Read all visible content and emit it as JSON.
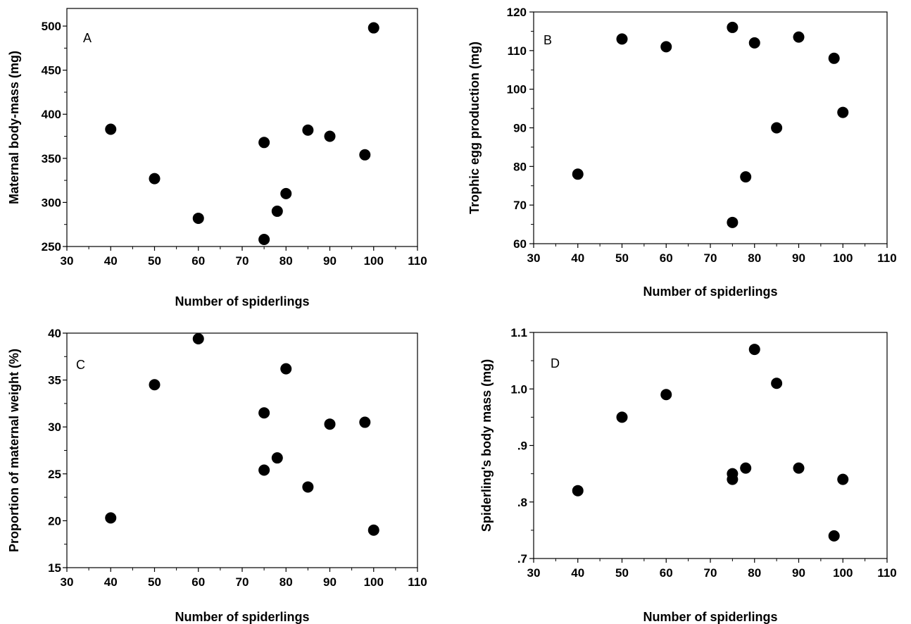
{
  "chart_data": [
    {
      "type": "scatter",
      "panel_label": "A",
      "xlabel": "Number of spiderlings",
      "ylabel": "Maternal body-mass (mg)",
      "xlim": [
        30,
        110
      ],
      "ylim": [
        250,
        520
      ],
      "xticks": [
        30,
        40,
        50,
        60,
        70,
        80,
        90,
        100,
        110
      ],
      "yticks": [
        250,
        300,
        350,
        400,
        450,
        500
      ],
      "ytick_labels": [
        "250",
        "300",
        "350",
        "400",
        "450",
        "500"
      ],
      "grid": false,
      "points": [
        {
          "x": 40,
          "y": 383
        },
        {
          "x": 50,
          "y": 327
        },
        {
          "x": 60,
          "y": 282
        },
        {
          "x": 75,
          "y": 368
        },
        {
          "x": 75,
          "y": 258
        },
        {
          "x": 78,
          "y": 290
        },
        {
          "x": 80,
          "y": 310
        },
        {
          "x": 85,
          "y": 382
        },
        {
          "x": 90,
          "y": 375
        },
        {
          "x": 98,
          "y": 354
        },
        {
          "x": 100,
          "y": 498
        }
      ]
    },
    {
      "type": "scatter",
      "panel_label": "B",
      "xlabel": "Number of spiderlings",
      "ylabel": "Trophic egg production (mg)",
      "xlim": [
        30,
        110
      ],
      "ylim": [
        60,
        120
      ],
      "xticks": [
        30,
        40,
        50,
        60,
        70,
        80,
        90,
        100,
        110
      ],
      "yticks": [
        60,
        70,
        80,
        90,
        100,
        110,
        120
      ],
      "ytick_labels": [
        "60",
        "70",
        "80",
        "90",
        "100",
        "110",
        "120"
      ],
      "grid": false,
      "points": [
        {
          "x": 40,
          "y": 78
        },
        {
          "x": 50,
          "y": 113
        },
        {
          "x": 60,
          "y": 111
        },
        {
          "x": 75,
          "y": 116
        },
        {
          "x": 75,
          "y": 65.5
        },
        {
          "x": 78,
          "y": 77.3
        },
        {
          "x": 80,
          "y": 112
        },
        {
          "x": 85,
          "y": 90
        },
        {
          "x": 90,
          "y": 113.5
        },
        {
          "x": 98,
          "y": 108
        },
        {
          "x": 100,
          "y": 94
        }
      ]
    },
    {
      "type": "scatter",
      "panel_label": "C",
      "xlabel": "Number of spiderlings",
      "ylabel": "Proportion of maternal weight (%)",
      "xlim": [
        30,
        110
      ],
      "ylim": [
        15,
        40
      ],
      "xticks": [
        30,
        40,
        50,
        60,
        70,
        80,
        90,
        100,
        110
      ],
      "yticks": [
        15,
        20,
        25,
        30,
        35,
        40
      ],
      "ytick_labels": [
        "15",
        "20",
        "25",
        "30",
        "35",
        "40"
      ],
      "grid": false,
      "points": [
        {
          "x": 40,
          "y": 20.3
        },
        {
          "x": 50,
          "y": 34.5
        },
        {
          "x": 60,
          "y": 39.4
        },
        {
          "x": 75,
          "y": 31.5
        },
        {
          "x": 75,
          "y": 25.4
        },
        {
          "x": 78,
          "y": 26.7
        },
        {
          "x": 80,
          "y": 36.2
        },
        {
          "x": 85,
          "y": 23.6
        },
        {
          "x": 90,
          "y": 30.3
        },
        {
          "x": 98,
          "y": 30.5
        },
        {
          "x": 100,
          "y": 19
        }
      ]
    },
    {
      "type": "scatter",
      "panel_label": "D",
      "xlabel": "Number of spiderlings",
      "ylabel": "Spiderling's body mass (mg)",
      "xlim": [
        30,
        110
      ],
      "ylim": [
        0.7,
        1.1
      ],
      "xticks": [
        30,
        40,
        50,
        60,
        70,
        80,
        90,
        100,
        110
      ],
      "yticks": [
        0.7,
        0.8,
        0.9,
        1.0,
        1.1
      ],
      "ytick_labels": [
        ".7",
        ".8",
        ".9",
        "1.0",
        "1.1"
      ],
      "grid": false,
      "points": [
        {
          "x": 40,
          "y": 0.82
        },
        {
          "x": 50,
          "y": 0.95
        },
        {
          "x": 60,
          "y": 0.99
        },
        {
          "x": 75,
          "y": 0.85
        },
        {
          "x": 75,
          "y": 0.84
        },
        {
          "x": 78,
          "y": 0.86
        },
        {
          "x": 80,
          "y": 1.07
        },
        {
          "x": 85,
          "y": 1.01
        },
        {
          "x": 90,
          "y": 0.86
        },
        {
          "x": 98,
          "y": 0.74
        },
        {
          "x": 100,
          "y": 0.84
        }
      ]
    }
  ]
}
